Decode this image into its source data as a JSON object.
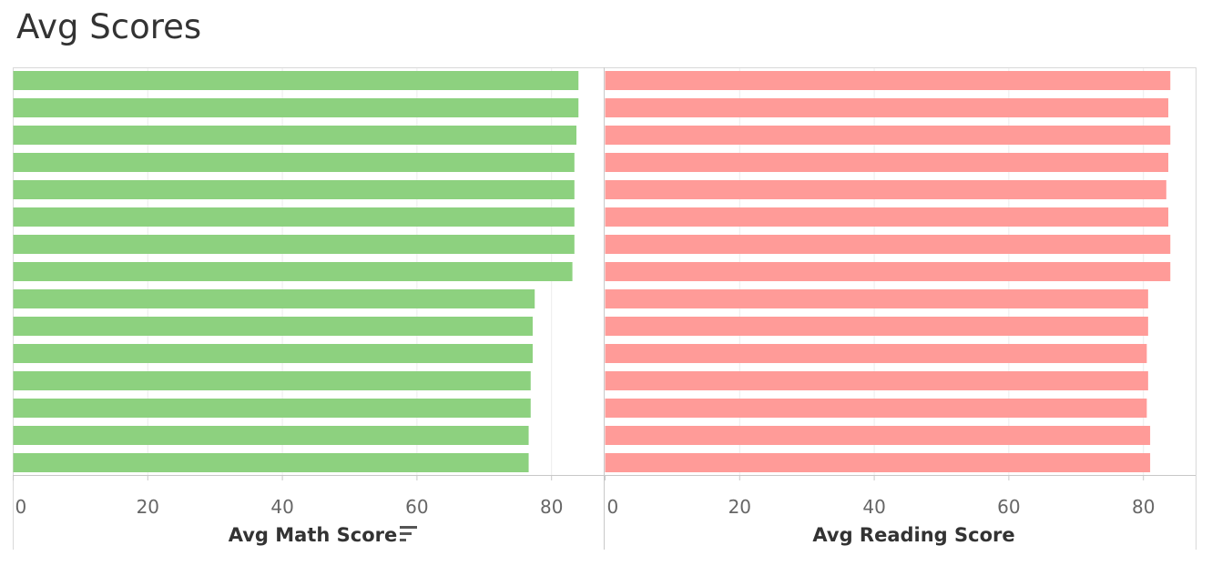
{
  "page": {
    "title": "Avg Scores"
  },
  "sort_icon": "sort-descending-icon",
  "chart_data": [
    {
      "type": "bar",
      "orientation": "horizontal",
      "xlabel": "Avg Math Score",
      "ylabel": "",
      "xlim": [
        0,
        87
      ],
      "ticks": [
        0,
        20,
        40,
        60,
        80
      ],
      "color": "#8dd17f",
      "grid": true,
      "sorted": "descending",
      "values": [
        84,
        84,
        83.7,
        83.4,
        83.4,
        83.4,
        83.4,
        83.1,
        77.5,
        77.2,
        77.2,
        76.9,
        76.9,
        76.6,
        76.6
      ]
    },
    {
      "type": "bar",
      "orientation": "horizontal",
      "xlabel": "Avg Reading Score",
      "ylabel": "",
      "xlim": [
        0,
        87
      ],
      "ticks": [
        0,
        20,
        40,
        60,
        80
      ],
      "color": "#ff9b98",
      "grid": true,
      "values": [
        84,
        83.7,
        84,
        83.7,
        83.4,
        83.7,
        84,
        84,
        80.7,
        80.7,
        80.5,
        80.7,
        80.5,
        81,
        81
      ]
    }
  ]
}
